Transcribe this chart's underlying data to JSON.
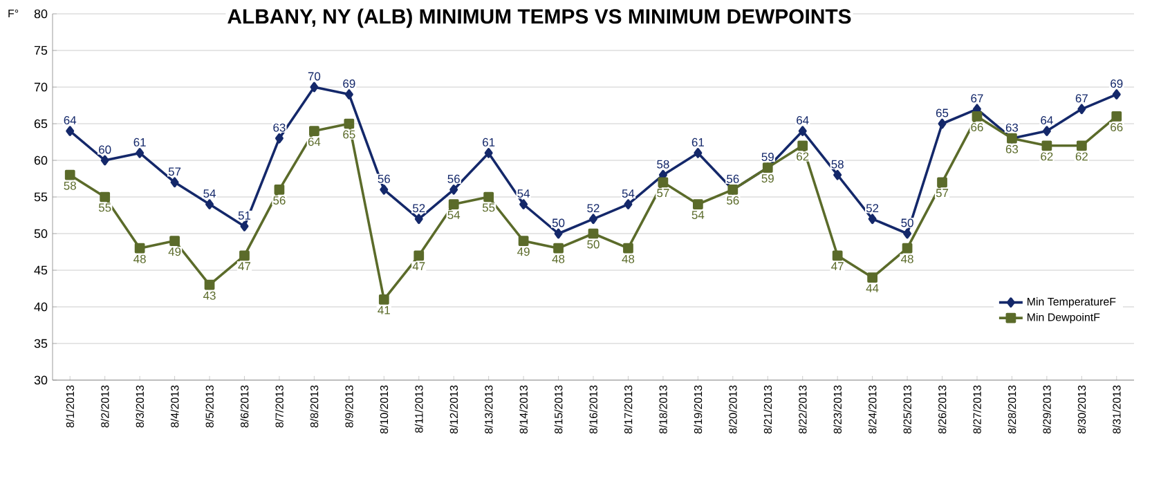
{
  "chart_data": {
    "type": "line",
    "title": "ALBANY, NY (ALB)      MINIMUM TEMPS  VS  MINIMUM DEWPOINTS",
    "ylabel": "F°",
    "categories": [
      "8/1/2013",
      "8/2/2013",
      "8/3/2013",
      "8/4/2013",
      "8/5/2013",
      "8/6/2013",
      "8/7/2013",
      "8/8/2013",
      "8/9/2013",
      "8/10/2013",
      "8/11/2013",
      "8/12/2013",
      "8/13/2013",
      "8/14/2013",
      "8/15/2013",
      "8/16/2013",
      "8/17/2013",
      "8/18/2013",
      "8/19/2013",
      "8/20/2013",
      "8/21/2013",
      "8/22/2013",
      "8/23/2013",
      "8/24/2013",
      "8/25/2013",
      "8/26/2013",
      "8/27/2013",
      "8/28/2013",
      "8/29/2013",
      "8/30/2013",
      "8/31/2013"
    ],
    "series": [
      {
        "name": "Min TemperatureF",
        "color": "#14286a",
        "marker": "diamond",
        "values": [
          64,
          60,
          61,
          57,
          54,
          51,
          63,
          70,
          69,
          56,
          52,
          56,
          61,
          54,
          50,
          52,
          54,
          58,
          61,
          56,
          59,
          64,
          58,
          52,
          50,
          65,
          67,
          63,
          64,
          67,
          69
        ]
      },
      {
        "name": "Min DewpointF",
        "color": "#5b6b2a",
        "marker": "square",
        "values": [
          58,
          55,
          48,
          49,
          43,
          47,
          56,
          64,
          65,
          41,
          47,
          54,
          55,
          49,
          48,
          50,
          48,
          57,
          54,
          56,
          59,
          62,
          47,
          44,
          48,
          57,
          66,
          63,
          62,
          62,
          66
        ]
      }
    ],
    "ylim": [
      30,
      80
    ],
    "yticks": [
      30,
      35,
      40,
      45,
      50,
      55,
      60,
      65,
      70,
      75,
      80
    ],
    "grid": "y",
    "legend": "bottom right",
    "data_labels": true
  }
}
